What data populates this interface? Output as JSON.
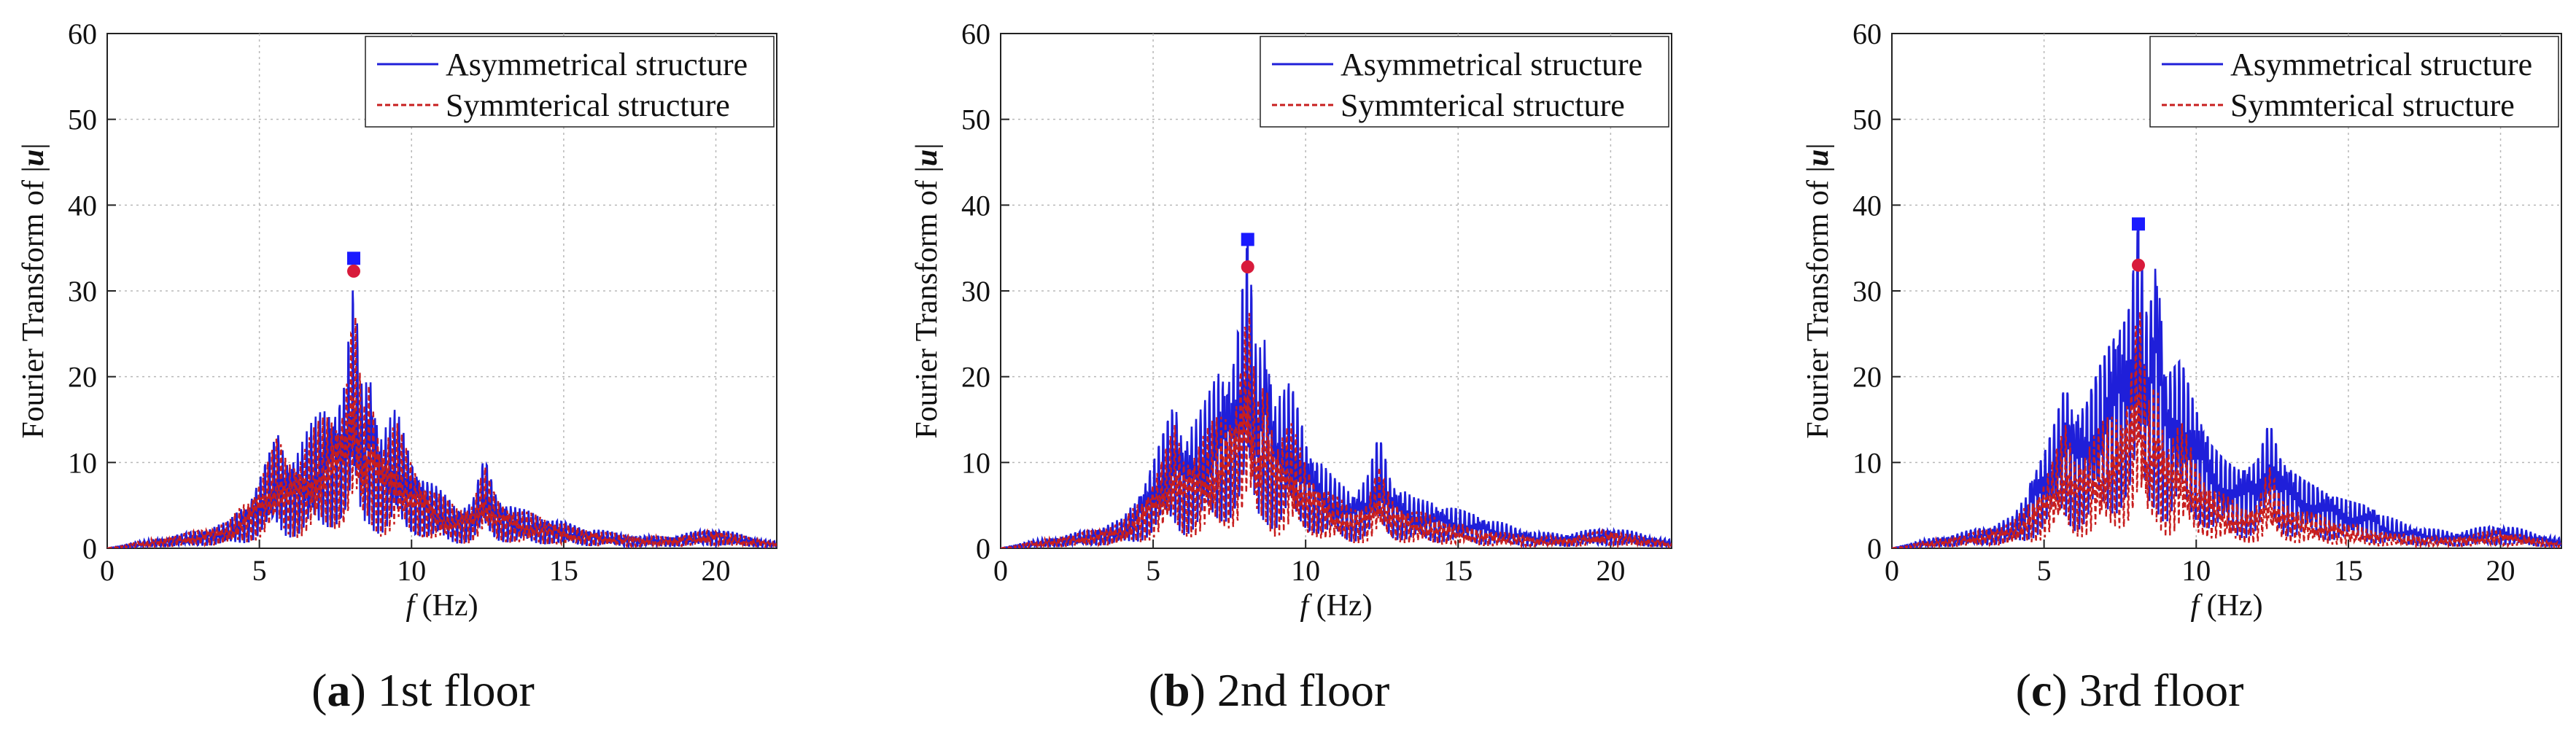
{
  "figure": {
    "captions": [
      {
        "letter": "a",
        "text": " 1st floor"
      },
      {
        "letter": "b",
        "text": " 2nd floor"
      },
      {
        "letter": "c",
        "text": " 3rd floor"
      }
    ],
    "colors": {
      "asymmetrical": "#1f1fd9",
      "symmetrical": "#c81e1e",
      "peak_marker_asym": "#1a1aff",
      "peak_marker_sym": "#d81b3b",
      "grid": "#b8b8b8",
      "axis": "#222222"
    }
  },
  "chart_data": [
    {
      "type": "line",
      "xlabel_italic": "f",
      "xlabel_unit": " (Hz)",
      "ylabel_prefix": "Fourier Transform of |",
      "ylabel_var": "u",
      "ylabel_suffix": "|",
      "xlim": [
        0,
        22
      ],
      "ylim": [
        0,
        60
      ],
      "xticks": [
        0,
        5,
        10,
        15,
        20
      ],
      "yticks": [
        0,
        10,
        20,
        30,
        40,
        50,
        60
      ],
      "grid": true,
      "legend_position": "top-right",
      "series": [
        {
          "name": "Asymmetrical structure",
          "style": "solid",
          "points": [
            [
              0,
              0
            ],
            [
              1,
              0.8
            ],
            [
              2,
              1.4
            ],
            [
              3,
              2.2
            ],
            [
              4,
              3.2
            ],
            [
              4.6,
              6
            ],
            [
              5,
              9
            ],
            [
              5.3,
              12
            ],
            [
              5.6,
              15
            ],
            [
              5.9,
              12
            ],
            [
              6.3,
              13
            ],
            [
              6.8,
              16
            ],
            [
              7.2,
              19
            ],
            [
              7.6,
              20
            ],
            [
              7.8,
              22
            ],
            [
              8.1,
              33.8
            ],
            [
              8.4,
              19
            ],
            [
              8.6,
              24.5
            ],
            [
              9.0,
              15
            ],
            [
              9.5,
              17.5
            ],
            [
              10,
              12
            ],
            [
              10.5,
              9
            ],
            [
              11,
              7
            ],
            [
              11.5,
              5.5
            ],
            [
              12,
              6
            ],
            [
              12.4,
              11.8
            ],
            [
              12.8,
              7
            ],
            [
              13.5,
              5
            ],
            [
              14.5,
              4
            ],
            [
              15.5,
              2.8
            ],
            [
              16.5,
              2
            ],
            [
              17.5,
              1.5
            ],
            [
              18.5,
              1.5
            ],
            [
              20,
              2.5
            ],
            [
              21,
              1.5
            ],
            [
              22,
              0.8
            ]
          ]
        },
        {
          "name": "Symmterical structure",
          "style": "dashed",
          "points": [
            [
              0,
              0
            ],
            [
              1,
              0.8
            ],
            [
              2,
              1.4
            ],
            [
              3,
              2.2
            ],
            [
              4,
              3.2
            ],
            [
              4.6,
              6
            ],
            [
              5,
              9
            ],
            [
              5.3,
              11.5
            ],
            [
              5.6,
              14.5
            ],
            [
              5.9,
              11.5
            ],
            [
              6.3,
              12
            ],
            [
              6.8,
              15
            ],
            [
              7.2,
              17
            ],
            [
              7.6,
              18
            ],
            [
              7.8,
              20
            ],
            [
              8.1,
              32.3
            ],
            [
              8.4,
              17
            ],
            [
              8.6,
              21
            ],
            [
              9.0,
              14
            ],
            [
              9.5,
              16
            ],
            [
              10,
              11
            ],
            [
              10.5,
              8.5
            ],
            [
              11,
              6.5
            ],
            [
              11.5,
              5.2
            ],
            [
              12,
              5.8
            ],
            [
              12.4,
              10.5
            ],
            [
              12.8,
              6.5
            ],
            [
              13.5,
              4.8
            ],
            [
              14.5,
              3.8
            ],
            [
              15.5,
              2.6
            ],
            [
              16.5,
              1.9
            ],
            [
              17.5,
              1.4
            ],
            [
              18.5,
              1.4
            ],
            [
              20,
              2.3
            ],
            [
              21,
              1.4
            ],
            [
              22,
              0.7
            ]
          ]
        }
      ],
      "peaks": {
        "asymmetrical": [
          8.1,
          33.8
        ],
        "symmetrical": [
          8.1,
          32.3
        ]
      },
      "amp": 1.0
    },
    {
      "type": "line",
      "xlabel_italic": "f",
      "xlabel_unit": " (Hz)",
      "ylabel_prefix": "Fourier Transform of |",
      "ylabel_var": "u",
      "ylabel_suffix": "|",
      "xlim": [
        0,
        22
      ],
      "ylim": [
        0,
        60
      ],
      "xticks": [
        0,
        5,
        10,
        15,
        20
      ],
      "yticks": [
        0,
        10,
        20,
        30,
        40,
        50,
        60
      ],
      "grid": true,
      "legend_position": "top-right",
      "series": [
        {
          "name": "Asymmetrical structure",
          "style": "solid",
          "points": [
            [
              0,
              0
            ],
            [
              1,
              0.9
            ],
            [
              2,
              1.5
            ],
            [
              3,
              2.4
            ],
            [
              4,
              3.5
            ],
            [
              4.6,
              7
            ],
            [
              5,
              10
            ],
            [
              5.3,
              13
            ],
            [
              5.7,
              17
            ],
            [
              6.0,
              13
            ],
            [
              6.4,
              15
            ],
            [
              6.8,
              18
            ],
            [
              7.2,
              21
            ],
            [
              7.6,
              22
            ],
            [
              7.8,
              26
            ],
            [
              8.1,
              36
            ],
            [
              8.4,
              22
            ],
            [
              8.7,
              26
            ],
            [
              9.0,
              17
            ],
            [
              9.5,
              19.5
            ],
            [
              10,
              13
            ],
            [
              10.5,
              10
            ],
            [
              11,
              8
            ],
            [
              11.5,
              6.5
            ],
            [
              12,
              8
            ],
            [
              12.4,
              13.2
            ],
            [
              12.8,
              8
            ],
            [
              13.5,
              6
            ],
            [
              14.5,
              5
            ],
            [
              15.5,
              4
            ],
            [
              16.5,
              3
            ],
            [
              17.5,
              2
            ],
            [
              18.5,
              1.8
            ],
            [
              20,
              2.6
            ],
            [
              21,
              1.8
            ],
            [
              22,
              1
            ]
          ]
        },
        {
          "name": "Symmterical structure",
          "style": "dashed",
          "points": [
            [
              0,
              0
            ],
            [
              1,
              0.8
            ],
            [
              2,
              1.4
            ],
            [
              3,
              2.2
            ],
            [
              4,
              3.2
            ],
            [
              4.6,
              6
            ],
            [
              5,
              9
            ],
            [
              5.3,
              11.5
            ],
            [
              5.7,
              16
            ],
            [
              6.0,
              12
            ],
            [
              6.4,
              13
            ],
            [
              6.8,
              15
            ],
            [
              7.2,
              17
            ],
            [
              7.6,
              19
            ],
            [
              7.8,
              22
            ],
            [
              8.1,
              32.8
            ],
            [
              8.4,
              18
            ],
            [
              8.7,
              22
            ],
            [
              9.0,
              14
            ],
            [
              9.5,
              16
            ],
            [
              10,
              11
            ],
            [
              10.5,
              8.5
            ],
            [
              11,
              6.5
            ],
            [
              11.5,
              5.2
            ],
            [
              12,
              6
            ],
            [
              12.4,
              10.5
            ],
            [
              12.8,
              6.5
            ],
            [
              13.5,
              4.8
            ],
            [
              14.5,
              3.8
            ],
            [
              15.5,
              2.6
            ],
            [
              16.5,
              1.9
            ],
            [
              17.5,
              1.4
            ],
            [
              18.5,
              1.4
            ],
            [
              20,
              2.3
            ],
            [
              21,
              1.4
            ],
            [
              22,
              0.7
            ]
          ]
        }
      ],
      "peaks": {
        "asymmetrical": [
          8.1,
          36
        ],
        "symmetrical": [
          8.1,
          32.8
        ]
      },
      "amp": 1.15
    },
    {
      "type": "line",
      "xlabel_italic": "f",
      "xlabel_unit": " (Hz)",
      "ylabel_prefix": "Fourier Transform of |",
      "ylabel_var": "u",
      "ylabel_suffix": "|",
      "xlim": [
        0,
        22
      ],
      "ylim": [
        0,
        60
      ],
      "xticks": [
        0,
        5,
        10,
        15,
        20
      ],
      "yticks": [
        0,
        10,
        20,
        30,
        40,
        50,
        60
      ],
      "grid": true,
      "legend_position": "top-right",
      "series": [
        {
          "name": "Asymmetrical structure",
          "style": "solid",
          "points": [
            [
              0,
              0
            ],
            [
              1,
              1
            ],
            [
              2,
              1.7
            ],
            [
              3,
              2.6
            ],
            [
              4,
              3.8
            ],
            [
              4.6,
              8
            ],
            [
              5,
              11
            ],
            [
              5.3,
              14
            ],
            [
              5.7,
              19
            ],
            [
              6.0,
              15
            ],
            [
              6.4,
              17
            ],
            [
              6.8,
              21
            ],
            [
              7.2,
              24
            ],
            [
              7.6,
              26
            ],
            [
              7.8,
              28
            ],
            [
              8.1,
              37.8
            ],
            [
              8.4,
              26
            ],
            [
              8.7,
              33.8
            ],
            [
              9.0,
              20
            ],
            [
              9.5,
              22
            ],
            [
              10,
              16
            ],
            [
              10.5,
              12
            ],
            [
              11,
              10
            ],
            [
              11.5,
              9
            ],
            [
              12,
              10
            ],
            [
              12.4,
              14.8
            ],
            [
              12.8,
              10
            ],
            [
              13.5,
              8
            ],
            [
              14.5,
              6
            ],
            [
              15.5,
              5
            ],
            [
              16.5,
              3.5
            ],
            [
              17.5,
              2.5
            ],
            [
              18.5,
              2
            ],
            [
              20,
              3
            ],
            [
              21,
              2
            ],
            [
              22,
              1.2
            ]
          ]
        },
        {
          "name": "Symmterical structure",
          "style": "dashed",
          "points": [
            [
              0,
              0
            ],
            [
              1,
              0.8
            ],
            [
              2,
              1.4
            ],
            [
              3,
              2.2
            ],
            [
              4,
              3.2
            ],
            [
              4.6,
              6
            ],
            [
              5,
              9
            ],
            [
              5.3,
              11.5
            ],
            [
              5.7,
              16
            ],
            [
              6.0,
              12
            ],
            [
              6.4,
              13
            ],
            [
              6.8,
              15
            ],
            [
              7.2,
              17
            ],
            [
              7.6,
              19
            ],
            [
              7.8,
              22
            ],
            [
              8.1,
              33
            ],
            [
              8.4,
              18
            ],
            [
              8.7,
              22
            ],
            [
              9.0,
              14
            ],
            [
              9.5,
              16
            ],
            [
              10,
              11
            ],
            [
              10.5,
              8.5
            ],
            [
              11,
              6.5
            ],
            [
              11.5,
              5.2
            ],
            [
              12,
              6
            ],
            [
              12.4,
              10.5
            ],
            [
              12.8,
              6.5
            ],
            [
              13.5,
              4.8
            ],
            [
              14.5,
              3.8
            ],
            [
              15.5,
              2.6
            ],
            [
              16.5,
              1.9
            ],
            [
              17.5,
              1.4
            ],
            [
              18.5,
              1.4
            ],
            [
              20,
              2.3
            ],
            [
              21,
              1.4
            ],
            [
              22,
              0.7
            ]
          ]
        }
      ],
      "peaks": {
        "asymmetrical": [
          8.1,
          37.8
        ],
        "symmetrical": [
          8.1,
          33
        ]
      },
      "amp": 1.3
    }
  ]
}
